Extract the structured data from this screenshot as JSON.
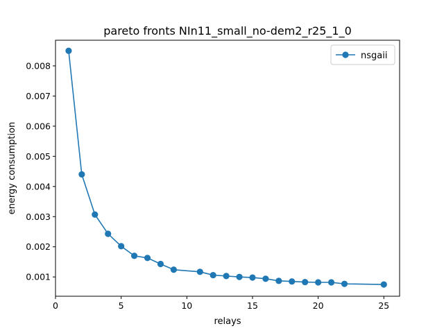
{
  "chart_data": {
    "type": "line",
    "title": "pareto fronts NIn11_small_no-dem2_r25_1_0",
    "xlabel": "relays",
    "ylabel": "energy consumption",
    "xlim": [
      0,
      26.2
    ],
    "ylim": [
      0.00036,
      0.00885
    ],
    "xticks": [
      0,
      5,
      10,
      15,
      20,
      25
    ],
    "yticks": [
      0.001,
      0.002,
      0.003,
      0.004,
      0.005,
      0.006,
      0.007,
      0.008
    ],
    "ytick_labels": [
      "0.001",
      "0.002",
      "0.003",
      "0.004",
      "0.005",
      "0.006",
      "0.007",
      "0.008"
    ],
    "grid": false,
    "legend_position": "top-right",
    "series": [
      {
        "name": "nsgaii",
        "color": "#1f77b4",
        "marker": "circle",
        "x": [
          1,
          2,
          3,
          4,
          5,
          6,
          7,
          8,
          9,
          11,
          12,
          13,
          14,
          15,
          16,
          17,
          18,
          19,
          20,
          21,
          22,
          25
        ],
        "y": [
          0.0085,
          0.0044,
          0.00307,
          0.00243,
          0.00202,
          0.0017,
          0.00163,
          0.00143,
          0.00124,
          0.00117,
          0.00106,
          0.00103,
          0.001,
          0.00098,
          0.00094,
          0.00087,
          0.00085,
          0.00083,
          0.00082,
          0.00082,
          0.00077,
          0.00075
        ]
      }
    ]
  }
}
